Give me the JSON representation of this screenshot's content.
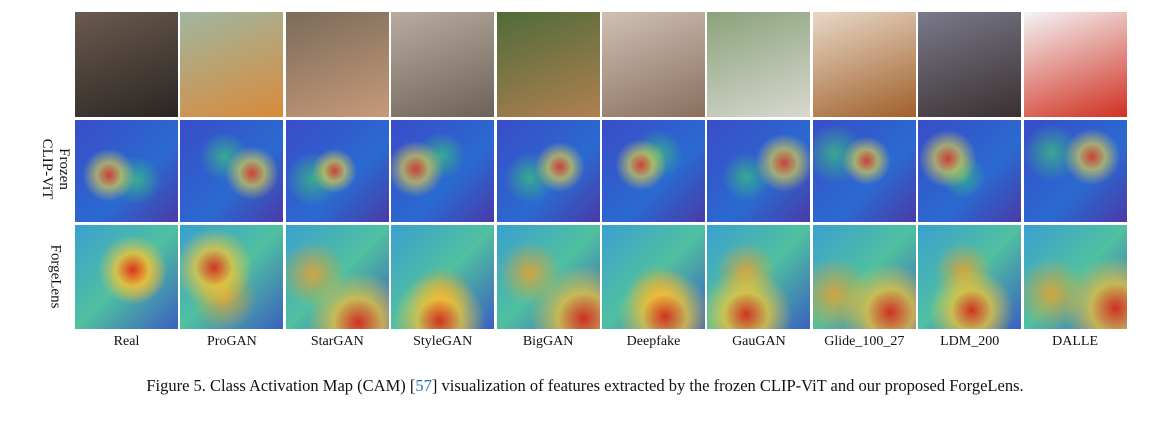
{
  "figure": {
    "row_labels": [
      [
        "Frozen",
        "CLIP-ViT"
      ],
      [
        "ForgeLens"
      ]
    ],
    "columns": [
      "Real",
      "ProGAN",
      "StarGAN",
      "StyleGAN",
      "BigGAN",
      "Deepfake",
      "GauGAN",
      "Glide_100_27",
      "LDM_200",
      "DALLE"
    ],
    "caption": {
      "prefix": "Figure 5. Class Activation Map (CAM) [",
      "ref": "57",
      "suffix": "] visualization of features extracted by the frozen CLIP-ViT and our proposed ForgeLens."
    }
  }
}
